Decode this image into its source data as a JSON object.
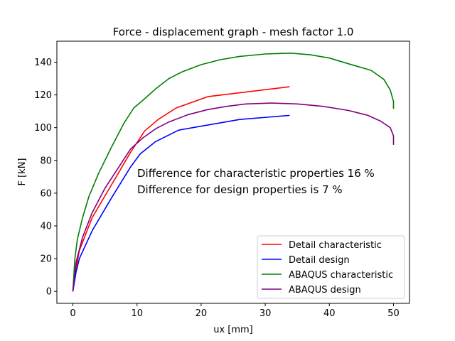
{
  "chart_data": {
    "type": "line",
    "title": "Force - displacement graph - mesh factor 1.0",
    "xlabel": "ux [mm]",
    "ylabel": "F [kN]",
    "xlim": [
      -2.5,
      52.5
    ],
    "ylim": [
      -7.3,
      152.8
    ],
    "xticks": [
      0,
      10,
      20,
      30,
      40,
      50
    ],
    "yticks": [
      0,
      20,
      40,
      60,
      80,
      100,
      120,
      140
    ],
    "grid": false,
    "legend_position": "lower-right",
    "annotations": [
      "Difference for characteristic properties 16 %",
      "Difference for design properties is 7 %"
    ],
    "series": [
      {
        "name": "Detail characteristic",
        "color": "#ff0000",
        "x": [
          0,
          0.3,
          1,
          3,
          6,
          9,
          11.2,
          13.3,
          16.1,
          21.1,
          33.8
        ],
        "y": [
          0,
          10,
          25,
          45,
          65,
          85,
          98,
          105,
          112,
          119,
          125
        ]
      },
      {
        "name": "Detail design",
        "color": "#0000ff",
        "x": [
          0,
          0.5,
          1,
          3,
          6,
          9,
          10.5,
          12.9,
          16.5,
          26,
          33.8
        ],
        "y": [
          0,
          12,
          20,
          37,
          57,
          76,
          84,
          91.5,
          98.5,
          105,
          107.5
        ]
      },
      {
        "name": "ABAQUS characteristic",
        "color": "#008000",
        "x": [
          0,
          0.3,
          0.7,
          1.5,
          2.5,
          4,
          6,
          8,
          9.5,
          11,
          13,
          15,
          17,
          20,
          23,
          26,
          30,
          34,
          37,
          40,
          43,
          46.5,
          48.5,
          49.5,
          50,
          50
        ],
        "y": [
          0,
          20,
          32,
          45,
          58,
          72,
          88,
          103,
          112,
          117,
          124,
          130,
          134,
          138.5,
          141.5,
          143.5,
          145,
          145.5,
          144.5,
          142.5,
          139,
          135,
          129.5,
          123,
          116,
          111.5
        ]
      },
      {
        "name": "ABAQUS design",
        "color": "#800080",
        "x": [
          0,
          0.5,
          1.5,
          3,
          5,
          7,
          9,
          11,
          13,
          15,
          18,
          21,
          24,
          27,
          31,
          35,
          39,
          43,
          46,
          48,
          49.5,
          50,
          50
        ],
        "y": [
          0,
          18,
          33,
          48,
          63,
          75,
          87,
          94,
          99.5,
          103.5,
          108,
          111,
          113,
          114.5,
          115,
          114.5,
          113,
          110.5,
          107.5,
          104,
          100,
          95,
          89.5
        ]
      }
    ]
  }
}
